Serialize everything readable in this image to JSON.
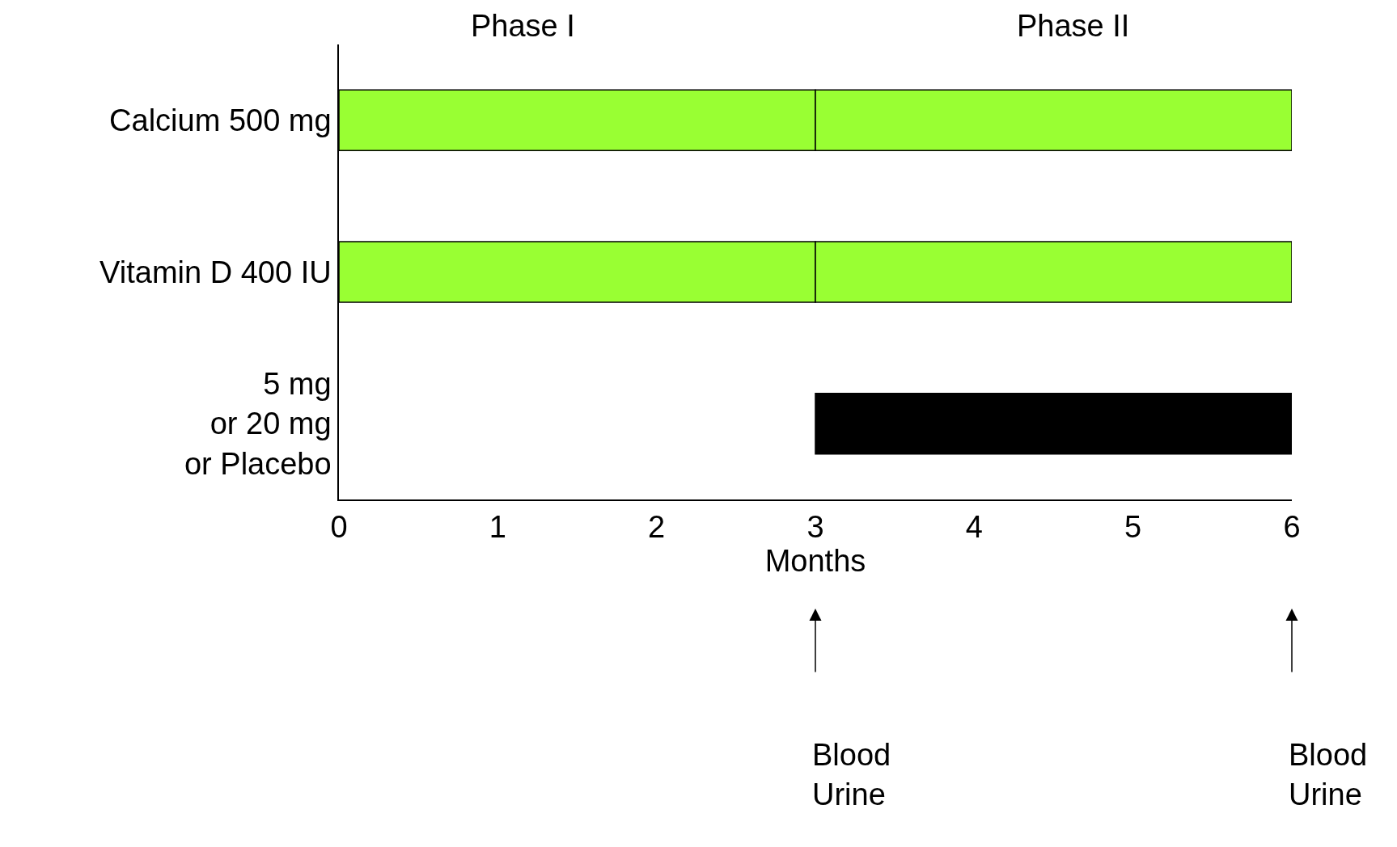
{
  "chart_data": {
    "type": "bar",
    "orientation": "horizontal",
    "xlabel": "Months",
    "categories": [
      "Calcium 500 mg",
      "Vitamin D 400 IU",
      "5 mg\nor 20 mg\nor Placebo"
    ],
    "series": [
      {
        "color": "#99ff33",
        "base": [
          0,
          0,
          null
        ],
        "values": [
          3,
          3,
          null
        ]
      },
      {
        "colors": [
          "#99ff33",
          "#99ff33",
          "#000000"
        ],
        "base": [
          3,
          3,
          3
        ],
        "values": [
          3,
          3,
          3
        ]
      }
    ],
    "xlim": [
      0,
      6
    ],
    "xticks": [
      0,
      1,
      2,
      3,
      4,
      5,
      6
    ],
    "annotations": [
      "Phase I",
      "Phase II",
      "Blood\nUrine",
      "Blood\nUrine"
    ]
  }
}
